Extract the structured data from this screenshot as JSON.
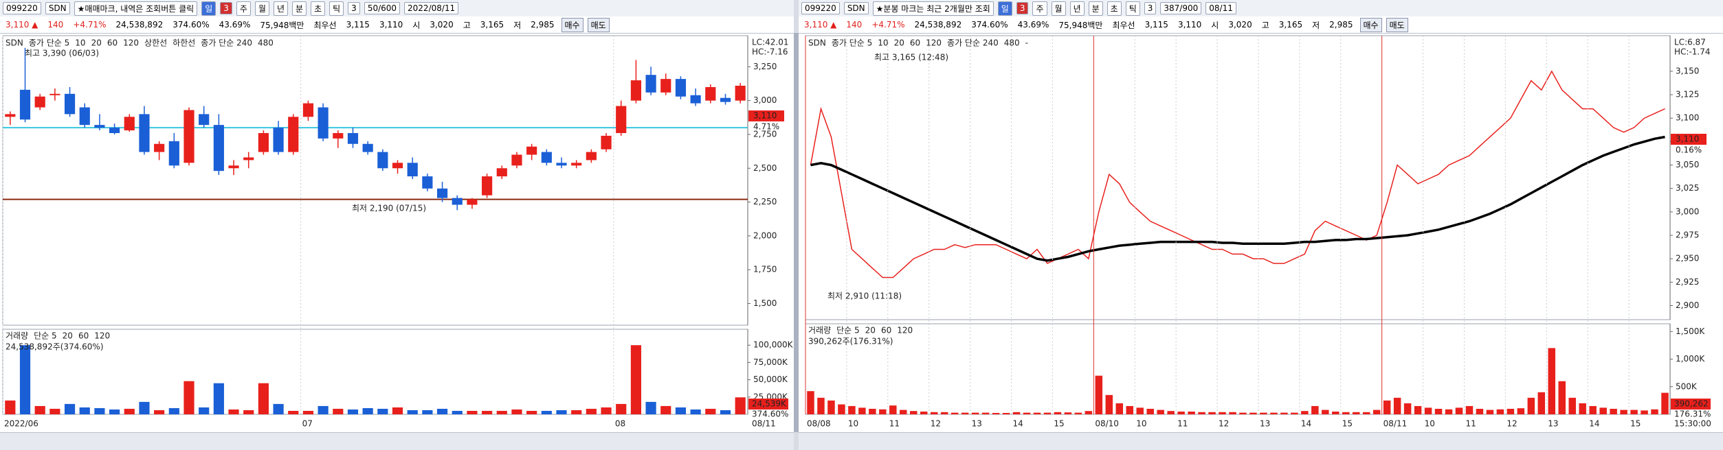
{
  "panels": [
    {
      "toolbar": [
        "099220",
        "SDN",
        "★매매마크, 내역은 조회버튼 클릭",
        "일",
        "3",
        "주",
        "월",
        "년",
        "분",
        "초",
        "틱",
        "3",
        "50/600",
        "2022/08/11"
      ],
      "quote": [
        "3,110 ▲",
        "140",
        "+4.71%",
        "24,538,892",
        "374.60%",
        "43.69%",
        "75,948백만",
        "최우선",
        "3,115",
        "3,110",
        "시",
        "3,020",
        "고",
        "3,165",
        "저",
        "2,985",
        "매수",
        "매도"
      ],
      "legend": [
        {
          "text": "SDN",
          "color": "#000000"
        },
        {
          "text": "종가 단순 5",
          "color": "#d020c0"
        },
        {
          "text": "10",
          "color": "#2050e0"
        },
        {
          "text": "20",
          "color": "#e0a000"
        },
        {
          "text": "60",
          "color": "#20a040"
        },
        {
          "text": "120",
          "color": "#606060"
        },
        {
          "text": "상한선",
          "color": "#000000"
        },
        {
          "text": "하한선",
          "color": "#000000"
        },
        {
          "text": "종가 단순 240",
          "color": "#c02020"
        },
        {
          "text": "480",
          "color": "#20b0d0"
        }
      ],
      "vol_legend": [
        {
          "text": "거래량",
          "color": "#000000"
        },
        {
          "text": "단순 5",
          "color": "#d020c0"
        },
        {
          "text": "20",
          "color": "#e0a000"
        },
        {
          "text": "60",
          "color": "#20a040"
        },
        {
          "text": "120",
          "color": "#606060"
        }
      ],
      "vol_info": "24,538,892주(374.60%)",
      "lc": "LC:42.01",
      "hc": "HC:-7.16",
      "price_box": "3,110",
      "pct_box": "4.71%",
      "vol_box": "24,539K",
      "vol_pct_box": "374.60%",
      "end_label": "08/11",
      "high_note": "최고 3,390 (06/03)",
      "low_note": "최저 2,190 (07/15)"
    },
    {
      "toolbar": [
        "099220",
        "SDN",
        "★분봉 마크는 최근 2개월만 조회",
        "일",
        "3",
        "주",
        "월",
        "년",
        "분",
        "초",
        "틱",
        "3",
        "387/900",
        "08/11"
      ],
      "quote": [
        "3,110 ▲",
        "140",
        "+4.71%",
        "24,538,892",
        "374.60%",
        "43.69%",
        "75,948백만",
        "최우선",
        "3,115",
        "3,110",
        "시",
        "3,020",
        "고",
        "3,165",
        "저",
        "2,985",
        "매수",
        "매도"
      ],
      "legend": [
        {
          "text": "SDN",
          "color": "#000000"
        },
        {
          "text": "종가 단순 5",
          "color": "#d020c0"
        },
        {
          "text": "10",
          "color": "#2050e0"
        },
        {
          "text": "20",
          "color": "#e0a000"
        },
        {
          "text": "60",
          "color": "#20a040"
        },
        {
          "text": "120",
          "color": "#606060"
        },
        {
          "text": "종가 단순 240",
          "color": "#c02020"
        },
        {
          "text": "480",
          "color": "#20b0d0"
        },
        {
          "text": "-",
          "color": "#000000"
        }
      ],
      "vol_legend": [
        {
          "text": "거래량",
          "color": "#000000"
        },
        {
          "text": "단순 5",
          "color": "#d020c0"
        },
        {
          "text": "20",
          "color": "#e0a000"
        },
        {
          "text": "60",
          "color": "#20a040"
        },
        {
          "text": "120",
          "color": "#606060"
        }
      ],
      "vol_info": "390,262주(176.31%)",
      "lc": "LC:6.87",
      "hc": "HC:-1.74",
      "price_box": "3,110",
      "pct_box": "0.16%",
      "vol_box": "390,262",
      "vol_pct_box": "176.31%",
      "end_label": "15:30:00",
      "high_note": "최고 3,165 (12:48)",
      "low_note": "최저 2,910 (11:18)"
    }
  ],
  "chart_data": [
    {
      "type": "candlestick",
      "up_color": "#e8201c",
      "down_color": "#1a5fd6",
      "ylim": [
        1340,
        3480
      ],
      "yticks": [
        {
          "value": 3250,
          "label": "3,250"
        },
        {
          "value": 3000,
          "label": "3,000"
        },
        {
          "value": 2750,
          "label": "2,750"
        },
        {
          "value": 2500,
          "label": "2,500"
        },
        {
          "value": 2250,
          "label": "2,250"
        },
        {
          "value": 2000,
          "label": "2,000"
        },
        {
          "value": 1750,
          "label": "1,750"
        },
        {
          "value": 1500,
          "label": "1,500"
        }
      ],
      "hlines": [
        {
          "value": 2800,
          "color": "#38c6e0"
        },
        {
          "value": 2270,
          "color": "#8b2a10"
        }
      ],
      "candles": [
        [
          2880,
          2920,
          2820,
          2900
        ],
        [
          3080,
          3390,
          2840,
          2860
        ],
        [
          2950,
          3050,
          2930,
          3030
        ],
        [
          3040,
          3090,
          3000,
          3050
        ],
        [
          3050,
          3100,
          2880,
          2900
        ],
        [
          2950,
          2980,
          2800,
          2820
        ],
        [
          2820,
          2900,
          2780,
          2800
        ],
        [
          2800,
          2830,
          2750,
          2760
        ],
        [
          2780,
          2900,
          2770,
          2880
        ],
        [
          2900,
          2960,
          2600,
          2620
        ],
        [
          2620,
          2700,
          2560,
          2680
        ],
        [
          2700,
          2760,
          2500,
          2520
        ],
        [
          2540,
          2950,
          2520,
          2930
        ],
        [
          2900,
          2960,
          2800,
          2820
        ],
        [
          2820,
          2900,
          2450,
          2480
        ],
        [
          2500,
          2560,
          2450,
          2520
        ],
        [
          2560,
          2620,
          2500,
          2580
        ],
        [
          2620,
          2780,
          2600,
          2760
        ],
        [
          2800,
          2850,
          2600,
          2620
        ],
        [
          2620,
          2900,
          2600,
          2880
        ],
        [
          2880,
          3000,
          2850,
          2980
        ],
        [
          2950,
          2980,
          2700,
          2720
        ],
        [
          2720,
          2780,
          2650,
          2760
        ],
        [
          2760,
          2800,
          2650,
          2680
        ],
        [
          2680,
          2700,
          2600,
          2620
        ],
        [
          2620,
          2640,
          2480,
          2500
        ],
        [
          2500,
          2560,
          2460,
          2540
        ],
        [
          2540,
          2580,
          2420,
          2440
        ],
        [
          2440,
          2460,
          2330,
          2350
        ],
        [
          2350,
          2400,
          2250,
          2280
        ],
        [
          2280,
          2300,
          2190,
          2230
        ],
        [
          2230,
          2280,
          2200,
          2270
        ],
        [
          2300,
          2460,
          2280,
          2440
        ],
        [
          2440,
          2520,
          2420,
          2500
        ],
        [
          2520,
          2620,
          2500,
          2600
        ],
        [
          2600,
          2680,
          2560,
          2660
        ],
        [
          2620,
          2640,
          2520,
          2540
        ],
        [
          2540,
          2580,
          2500,
          2520
        ],
        [
          2520,
          2560,
          2500,
          2540
        ],
        [
          2560,
          2640,
          2540,
          2620
        ],
        [
          2640,
          2760,
          2620,
          2740
        ],
        [
          2760,
          3000,
          2740,
          2960
        ],
        [
          3000,
          3300,
          2980,
          3150
        ],
        [
          3190,
          3250,
          3040,
          3060
        ],
        [
          3060,
          3200,
          3040,
          3160
        ],
        [
          3160,
          3180,
          3010,
          3030
        ],
        [
          3040,
          3090,
          2960,
          2980
        ],
        [
          3000,
          3120,
          2980,
          3100
        ],
        [
          3020,
          3050,
          2970,
          2990
        ],
        [
          3000,
          3130,
          2980,
          3110
        ]
      ]
    },
    {
      "type": "bar",
      "ylim": [
        0,
        123000
      ],
      "yticks": [
        {
          "value": 100000,
          "label": "100,000K"
        },
        {
          "value": 75000,
          "label": "75,000K"
        },
        {
          "value": 50000,
          "label": "50,000K"
        },
        {
          "value": 25000,
          "label": "25,000K"
        }
      ],
      "categories": [
        "2022/06",
        null,
        null,
        null,
        null,
        null,
        null,
        null,
        null,
        null,
        null,
        null,
        null,
        null,
        null,
        null,
        null,
        null,
        null,
        null,
        "07",
        null,
        null,
        null,
        null,
        null,
        null,
        null,
        null,
        null,
        null,
        null,
        null,
        null,
        null,
        null,
        null,
        null,
        null,
        null,
        null,
        "08",
        null,
        null,
        null,
        null,
        null,
        null,
        null,
        null
      ],
      "values": [
        20000,
        100000,
        12000,
        8000,
        15000,
        10000,
        9000,
        7000,
        8000,
        18000,
        6000,
        9000,
        48000,
        10000,
        45000,
        7000,
        6000,
        45000,
        15000,
        5000,
        5000,
        12000,
        8000,
        7000,
        9000,
        8000,
        10000,
        6000,
        6000,
        8000,
        5000,
        5000,
        5000,
        5000,
        7000,
        5000,
        5000,
        6000,
        6000,
        8000,
        10000,
        15000,
        100000,
        18000,
        12000,
        10000,
        7000,
        8000,
        6000,
        24539
      ]
    },
    {
      "type": "line",
      "ylim": [
        2885,
        3188
      ],
      "yticks": [
        {
          "value": 3150,
          "label": "3,150"
        },
        {
          "value": 3125,
          "label": "3,125"
        },
        {
          "value": 3100,
          "label": "3,100"
        },
        {
          "value": 3075,
          "label": "3,075"
        },
        {
          "value": 3050,
          "label": "3,050"
        },
        {
          "value": 3025,
          "label": "3,025"
        },
        {
          "value": 3000,
          "label": "3,000"
        },
        {
          "value": 2975,
          "label": "2,975"
        },
        {
          "value": 2950,
          "label": "2,950"
        },
        {
          "value": 2925,
          "label": "2,925"
        },
        {
          "value": 2900,
          "label": "2,900"
        }
      ],
      "series": [
        {
          "name": "SDN",
          "color": "#e8201c",
          "width": 1.5,
          "values": [
            3050,
            3110,
            3080,
            3020,
            2960,
            2950,
            2940,
            2930,
            2930,
            2940,
            2950,
            2955,
            2960,
            2960,
            2965,
            2962,
            2965,
            2965,
            2965,
            2960,
            2955,
            2950,
            2960,
            2945,
            2950,
            2955,
            2960,
            2950,
            3000,
            3040,
            3030,
            3010,
            3000,
            2990,
            2985,
            2980,
            2975,
            2970,
            2965,
            2960,
            2960,
            2955,
            2955,
            2950,
            2950,
            2945,
            2945,
            2950,
            2955,
            2980,
            2990,
            2985,
            2980,
            2975,
            2970,
            2975,
            3010,
            3050,
            3040,
            3030,
            3035,
            3040,
            3050,
            3055,
            3060,
            3070,
            3080,
            3090,
            3100,
            3120,
            3140,
            3130,
            3150,
            3130,
            3120,
            3110,
            3110,
            3100,
            3090,
            3085,
            3090,
            3100,
            3105,
            3110
          ]
        },
        {
          "name": "종가 단순 240",
          "color": "#000000",
          "width": 3.5,
          "values": [
            3050,
            3052,
            3050,
            3045,
            3040,
            3035,
            3030,
            3025,
            3020,
            3015,
            3010,
            3005,
            3000,
            2995,
            2990,
            2985,
            2980,
            2975,
            2970,
            2965,
            2960,
            2955,
            2950,
            2948,
            2950,
            2952,
            2955,
            2958,
            2960,
            2962,
            2964,
            2965,
            2966,
            2967,
            2968,
            2968,
            2968,
            2968,
            2968,
            2968,
            2967,
            2967,
            2966,
            2966,
            2966,
            2966,
            2966,
            2967,
            2968,
            2968,
            2969,
            2970,
            2970,
            2971,
            2971,
            2972,
            2973,
            2974,
            2975,
            2977,
            2979,
            2981,
            2984,
            2987,
            2990,
            2994,
            2998,
            3003,
            3008,
            3014,
            3020,
            3026,
            3032,
            3038,
            3044,
            3050,
            3055,
            3060,
            3064,
            3068,
            3072,
            3075,
            3078,
            3080
          ]
        }
      ]
    },
    {
      "type": "bar",
      "color": "#e8201c",
      "ylim": [
        0,
        1640
      ],
      "yticks": [
        {
          "value": 1500,
          "label": "1,500K"
        },
        {
          "value": 1000,
          "label": "1,000K"
        },
        {
          "value": 500,
          "label": "500K"
        }
      ],
      "categories": [
        "08/08",
        null,
        null,
        null,
        "10",
        null,
        null,
        null,
        "11",
        null,
        null,
        null,
        "12",
        null,
        null,
        null,
        "13",
        null,
        null,
        null,
        "14",
        null,
        null,
        null,
        "15",
        null,
        null,
        null,
        "08/10",
        null,
        null,
        null,
        "10",
        null,
        null,
        null,
        "11",
        null,
        null,
        null,
        "12",
        null,
        null,
        null,
        "13",
        null,
        null,
        null,
        "14",
        null,
        null,
        null,
        "15",
        null,
        null,
        null,
        "08/11",
        null,
        null,
        null,
        "10",
        null,
        null,
        null,
        "11",
        null,
        null,
        null,
        "12",
        null,
        null,
        null,
        "13",
        null,
        null,
        null,
        "14",
        null,
        null,
        null,
        "15",
        null,
        null,
        null
      ],
      "values": [
        420,
        300,
        250,
        180,
        150,
        120,
        100,
        90,
        160,
        80,
        60,
        50,
        40,
        40,
        30,
        30,
        30,
        30,
        25,
        25,
        40,
        30,
        30,
        30,
        40,
        35,
        30,
        60,
        700,
        350,
        200,
        150,
        120,
        100,
        80,
        60,
        50,
        50,
        40,
        40,
        40,
        40,
        30,
        30,
        30,
        30,
        30,
        30,
        60,
        150,
        80,
        50,
        40,
        40,
        40,
        80,
        250,
        300,
        200,
        150,
        120,
        100,
        90,
        120,
        150,
        100,
        80,
        90,
        100,
        110,
        300,
        400,
        1200,
        600,
        300,
        200,
        150,
        120,
        100,
        80,
        80,
        70,
        90,
        390
      ]
    }
  ]
}
